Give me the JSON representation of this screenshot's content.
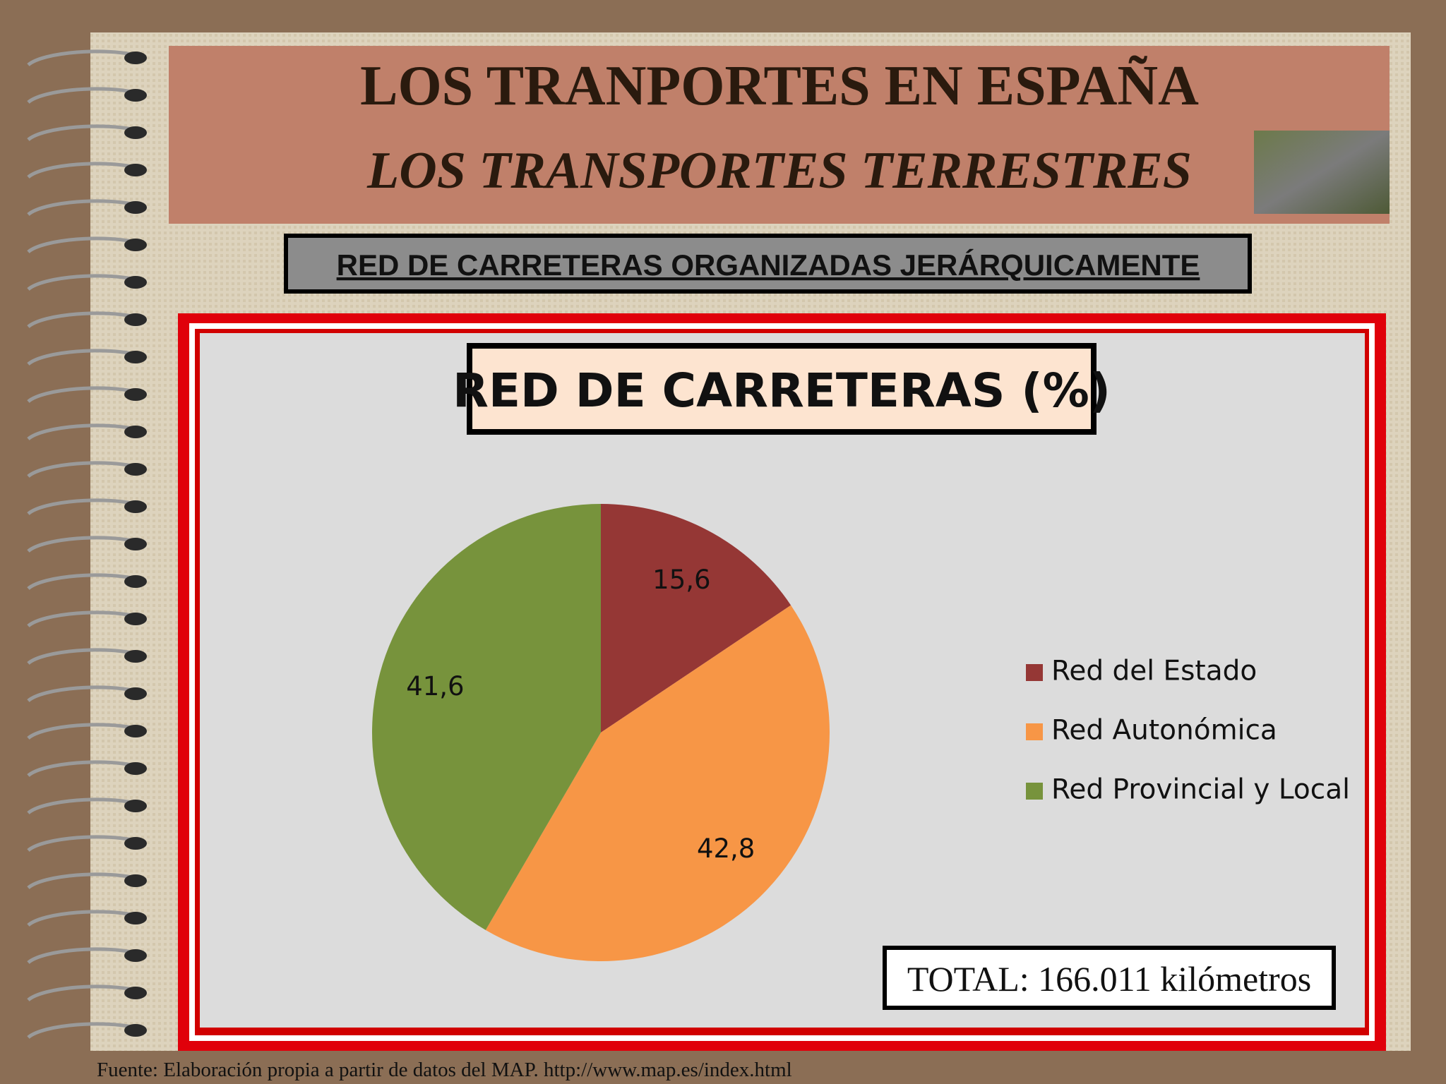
{
  "header": {
    "title": "LOS TRANPORTES EN ESPAÑA",
    "subtitle": "LOS TRANSPORTES TERRESTRES"
  },
  "section_title": "RED DE CARRETERAS ORGANIZADAS JERÁRQUICAMENTE",
  "chart_data": {
    "type": "pie",
    "title": "RED DE CARRETERAS (%)",
    "categories": [
      "Red del Estado",
      "Red Autonómica",
      "Red Provincial y Local"
    ],
    "values": [
      15.6,
      42.8,
      41.6
    ],
    "value_labels": [
      "15,6",
      "42,8",
      "41,6"
    ],
    "colors": [
      "#953735",
      "#f79646",
      "#77933c"
    ],
    "legend": "right"
  },
  "total_note": "TOTAL: 166.011 kilómetros",
  "footer": "Fuente: Elaboración propia a partir de datos del MAP. http://www.map.es/index.html"
}
